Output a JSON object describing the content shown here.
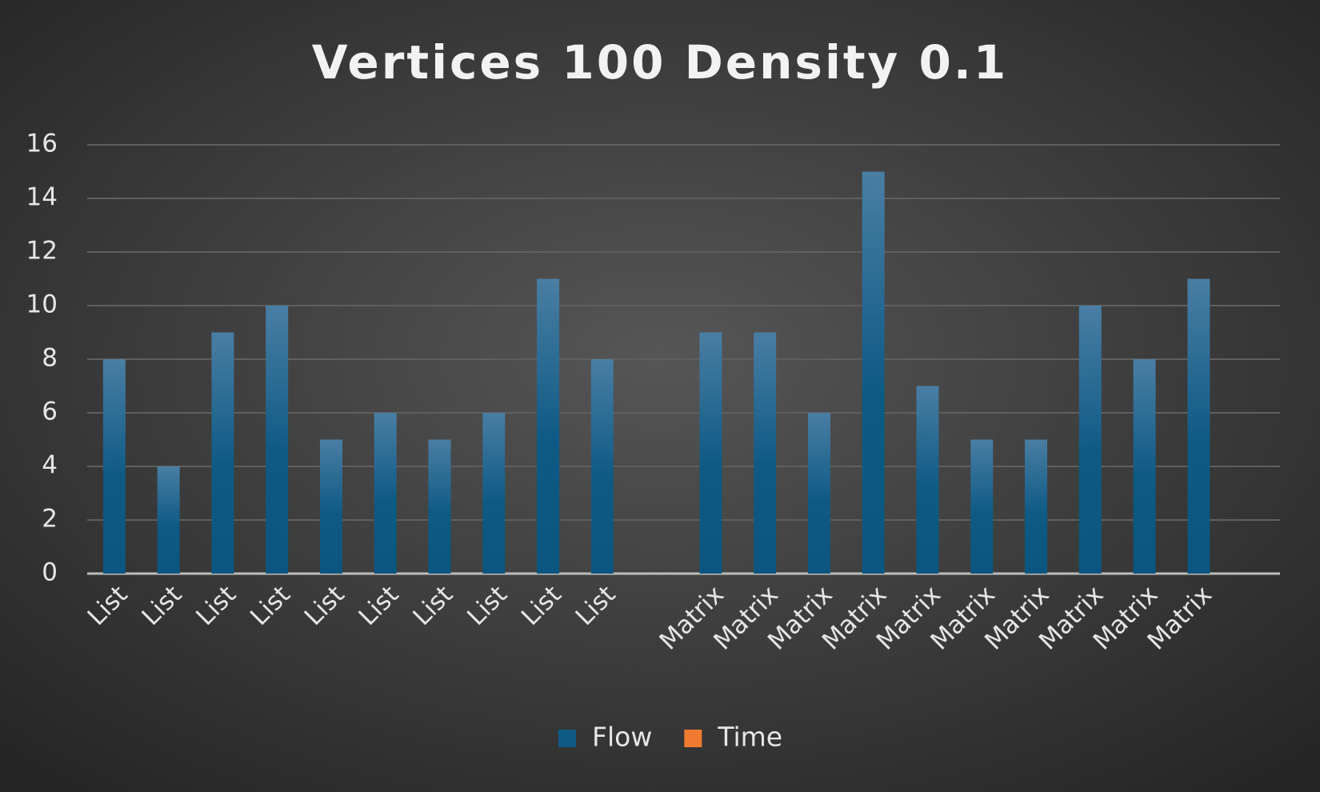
{
  "chart_data": {
    "type": "bar",
    "title": "Vertices 100 Density 0.1",
    "categories": [
      "List",
      "List",
      "List",
      "List",
      "List",
      "List",
      "List",
      "List",
      "List",
      "List",
      null,
      "Matrix",
      "Matrix",
      "Matrix",
      "Matrix",
      "Matrix",
      "Matrix",
      "Matrix",
      "Matrix",
      "Matrix",
      "Matrix",
      null
    ],
    "series": [
      {
        "name": "Flow",
        "color": "#0e5a85",
        "values": [
          8,
          4,
          9,
          10,
          5,
          6,
          5,
          6,
          11,
          8,
          null,
          9,
          9,
          6,
          15,
          7,
          5,
          5,
          10,
          8,
          11,
          null
        ]
      },
      {
        "name": "Time",
        "color": "#f07a30",
        "values": [
          0,
          0,
          0,
          0,
          0,
          0,
          0,
          0,
          0,
          0,
          null,
          0,
          0,
          0,
          0,
          0,
          0,
          0,
          0,
          0,
          0,
          null
        ]
      }
    ],
    "ylim": [
      0,
      16
    ],
    "yticks": [
      0,
      2,
      4,
      6,
      8,
      10,
      12,
      14,
      16
    ],
    "grid": true,
    "legend": "bottom"
  }
}
